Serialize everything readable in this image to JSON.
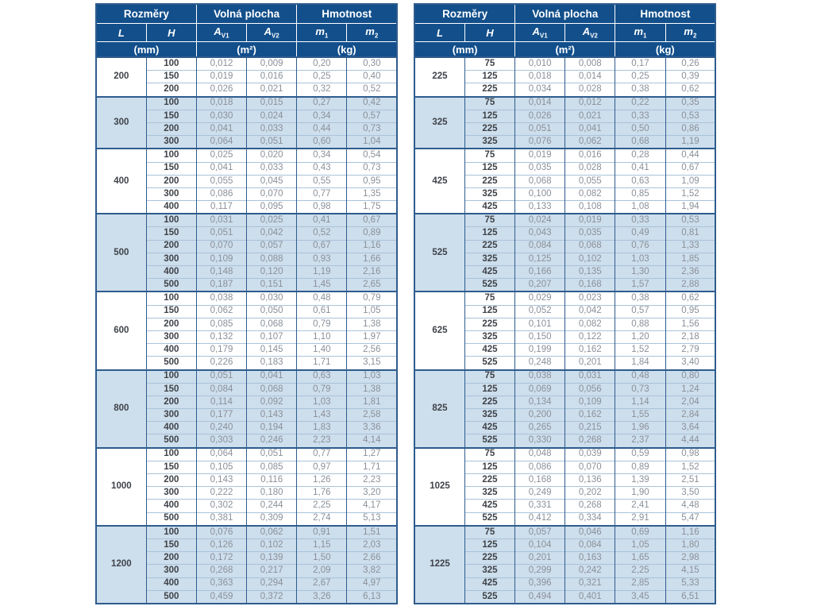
{
  "colors": {
    "header_bg": "#124f8b",
    "header_text": "#ffffff",
    "shaded_row_bg": "#cddeec",
    "grid_dark": "#2e5c8e",
    "grid_light": "#a9c3da",
    "dimension_text": "#3f4349",
    "value_text": "#8a9099"
  },
  "header": {
    "groups": [
      "Rozměry",
      "Volná plocha",
      "Hmotnost"
    ],
    "columns": [
      {
        "base": "L",
        "sub": ""
      },
      {
        "base": "H",
        "sub": ""
      },
      {
        "base": "A",
        "sub": "V1"
      },
      {
        "base": "A",
        "sub": "V2"
      },
      {
        "base": "m",
        "sub": "1"
      },
      {
        "base": "m",
        "sub": "2"
      }
    ],
    "units": [
      "(mm)",
      "(m²)",
      "(kg)"
    ]
  },
  "tables": [
    {
      "id": "left",
      "groups": [
        {
          "L": "200",
          "shaded": false,
          "rows": [
            [
              "100",
              "0,012",
              "0,009",
              "0,20",
              "0,30"
            ],
            [
              "150",
              "0,019",
              "0,016",
              "0,25",
              "0,40"
            ],
            [
              "200",
              "0,026",
              "0,021",
              "0,32",
              "0,52"
            ]
          ]
        },
        {
          "L": "300",
          "shaded": true,
          "rows": [
            [
              "100",
              "0,018",
              "0,015",
              "0,27",
              "0,42"
            ],
            [
              "150",
              "0,030",
              "0,024",
              "0,34",
              "0,57"
            ],
            [
              "200",
              "0,041",
              "0,033",
              "0,44",
              "0,73"
            ],
            [
              "300",
              "0,064",
              "0,051",
              "0,60",
              "1,04"
            ]
          ]
        },
        {
          "L": "400",
          "shaded": false,
          "rows": [
            [
              "100",
              "0,025",
              "0,020",
              "0,34",
              "0,54"
            ],
            [
              "150",
              "0,041",
              "0,033",
              "0,43",
              "0,73"
            ],
            [
              "200",
              "0,055",
              "0,045",
              "0,55",
              "0,95"
            ],
            [
              "300",
              "0,086",
              "0,070",
              "0,77",
              "1,35"
            ],
            [
              "400",
              "0,117",
              "0,095",
              "0,98",
              "1,75"
            ]
          ]
        },
        {
          "L": "500",
          "shaded": true,
          "rows": [
            [
              "100",
              "0,031",
              "0,025",
              "0,41",
              "0,67"
            ],
            [
              "150",
              "0,051",
              "0,042",
              "0,52",
              "0,89"
            ],
            [
              "200",
              "0,070",
              "0,057",
              "0,67",
              "1,16"
            ],
            [
              "300",
              "0,109",
              "0,088",
              "0,93",
              "1,66"
            ],
            [
              "400",
              "0,148",
              "0,120",
              "1,19",
              "2,16"
            ],
            [
              "500",
              "0,187",
              "0,151",
              "1,45",
              "2,65"
            ]
          ]
        },
        {
          "L": "600",
          "shaded": false,
          "rows": [
            [
              "100",
              "0,038",
              "0,030",
              "0,48",
              "0,79"
            ],
            [
              "150",
              "0,062",
              "0,050",
              "0,61",
              "1,05"
            ],
            [
              "200",
              "0,085",
              "0,068",
              "0,79",
              "1,38"
            ],
            [
              "300",
              "0,132",
              "0,107",
              "1,10",
              "1,97"
            ],
            [
              "400",
              "0,179",
              "0,145",
              "1,40",
              "2,56"
            ],
            [
              "500",
              "0,226",
              "0,183",
              "1,71",
              "3,15"
            ]
          ]
        },
        {
          "L": "800",
          "shaded": true,
          "rows": [
            [
              "100",
              "0,051",
              "0,041",
              "0,63",
              "1,03"
            ],
            [
              "150",
              "0,084",
              "0,068",
              "0,79",
              "1,38"
            ],
            [
              "200",
              "0,114",
              "0,092",
              "1,03",
              "1,81"
            ],
            [
              "300",
              "0,177",
              "0,143",
              "1,43",
              "2,58"
            ],
            [
              "400",
              "0,240",
              "0,194",
              "1,83",
              "3,36"
            ],
            [
              "500",
              "0,303",
              "0,246",
              "2,23",
              "4,14"
            ]
          ]
        },
        {
          "L": "1000",
          "shaded": false,
          "rows": [
            [
              "100",
              "0,064",
              "0,051",
              "0,77",
              "1,27"
            ],
            [
              "150",
              "0,105",
              "0,085",
              "0,97",
              "1,71"
            ],
            [
              "200",
              "0,143",
              "0,116",
              "1,26",
              "2,23"
            ],
            [
              "300",
              "0,222",
              "0,180",
              "1,76",
              "3,20"
            ],
            [
              "400",
              "0,302",
              "0,244",
              "2,25",
              "4,17"
            ],
            [
              "500",
              "0,381",
              "0,309",
              "2,74",
              "5,13"
            ]
          ]
        },
        {
          "L": "1200",
          "shaded": true,
          "rows": [
            [
              "100",
              "0,076",
              "0,062",
              "0,91",
              "1,51"
            ],
            [
              "150",
              "0,126",
              "0,102",
              "1,15",
              "2,03"
            ],
            [
              "200",
              "0,172",
              "0,139",
              "1,50",
              "2,66"
            ],
            [
              "300",
              "0,268",
              "0,217",
              "2,09",
              "3,82"
            ],
            [
              "400",
              "0,363",
              "0,294",
              "2,67",
              "4,97"
            ],
            [
              "500",
              "0,459",
              "0,372",
              "3,26",
              "6,13"
            ]
          ]
        }
      ]
    },
    {
      "id": "right",
      "groups": [
        {
          "L": "225",
          "shaded": false,
          "rows": [
            [
              "75",
              "0,010",
              "0,008",
              "0,17",
              "0,26"
            ],
            [
              "125",
              "0,018",
              "0,014",
              "0,25",
              "0,39"
            ],
            [
              "225",
              "0,034",
              "0,028",
              "0,38",
              "0,62"
            ]
          ]
        },
        {
          "L": "325",
          "shaded": true,
          "rows": [
            [
              "75",
              "0,014",
              "0,012",
              "0,22",
              "0,35"
            ],
            [
              "125",
              "0,026",
              "0,021",
              "0,33",
              "0,53"
            ],
            [
              "225",
              "0,051",
              "0,041",
              "0,50",
              "0,86"
            ],
            [
              "325",
              "0,076",
              "0,062",
              "0,68",
              "1,19"
            ]
          ]
        },
        {
          "L": "425",
          "shaded": false,
          "rows": [
            [
              "75",
              "0,019",
              "0,016",
              "0,28",
              "0,44"
            ],
            [
              "125",
              "0,035",
              "0,028",
              "0,41",
              "0,67"
            ],
            [
              "225",
              "0,068",
              "0,055",
              "0,63",
              "1,09"
            ],
            [
              "325",
              "0,100",
              "0,082",
              "0,85",
              "1,52"
            ],
            [
              "425",
              "0,133",
              "0,108",
              "1,08",
              "1,94"
            ]
          ]
        },
        {
          "L": "525",
          "shaded": true,
          "rows": [
            [
              "75",
              "0,024",
              "0,019",
              "0,33",
              "0,53"
            ],
            [
              "125",
              "0,043",
              "0,035",
              "0,49",
              "0,81"
            ],
            [
              "225",
              "0,084",
              "0,068",
              "0,76",
              "1,33"
            ],
            [
              "325",
              "0,125",
              "0,102",
              "1,03",
              "1,85"
            ],
            [
              "425",
              "0,166",
              "0,135",
              "1,30",
              "2,36"
            ],
            [
              "525",
              "0,207",
              "0,168",
              "1,57",
              "2,88"
            ]
          ]
        },
        {
          "L": "625",
          "shaded": false,
          "rows": [
            [
              "75",
              "0,029",
              "0,023",
              "0,38",
              "0,62"
            ],
            [
              "125",
              "0,052",
              "0,042",
              "0,57",
              "0,95"
            ],
            [
              "225",
              "0,101",
              "0,082",
              "0,88",
              "1,56"
            ],
            [
              "325",
              "0,150",
              "0,122",
              "1,20",
              "2,18"
            ],
            [
              "425",
              "0,199",
              "0,162",
              "1,52",
              "2,79"
            ],
            [
              "525",
              "0,248",
              "0,201",
              "1,84",
              "3,40"
            ]
          ]
        },
        {
          "L": "825",
          "shaded": true,
          "rows": [
            [
              "75",
              "0,038",
              "0,031",
              "0,48",
              "0,80"
            ],
            [
              "125",
              "0,069",
              "0,056",
              "0,73",
              "1,24"
            ],
            [
              "225",
              "0,134",
              "0,109",
              "1,14",
              "2,04"
            ],
            [
              "325",
              "0,200",
              "0,162",
              "1,55",
              "2,84"
            ],
            [
              "425",
              "0,265",
              "0,215",
              "1,96",
              "3,64"
            ],
            [
              "525",
              "0,330",
              "0,268",
              "2,37",
              "4,44"
            ]
          ]
        },
        {
          "L": "1025",
          "shaded": false,
          "rows": [
            [
              "75",
              "0,048",
              "0,039",
              "0,59",
              "0,98"
            ],
            [
              "125",
              "0,086",
              "0,070",
              "0,89",
              "1,52"
            ],
            [
              "225",
              "0,168",
              "0,136",
              "1,39",
              "2,51"
            ],
            [
              "325",
              "0,249",
              "0,202",
              "1,90",
              "3,50"
            ],
            [
              "425",
              "0,331",
              "0,268",
              "2,41",
              "4,48"
            ],
            [
              "525",
              "0,412",
              "0,334",
              "2,91",
              "5,47"
            ]
          ]
        },
        {
          "L": "1225",
          "shaded": true,
          "rows": [
            [
              "75",
              "0,057",
              "0,046",
              "0,69",
              "1,16"
            ],
            [
              "125",
              "0,104",
              "0,084",
              "1,05",
              "1,80"
            ],
            [
              "225",
              "0,201",
              "0,163",
              "1,65",
              "2,98"
            ],
            [
              "325",
              "0,299",
              "0,242",
              "2,25",
              "4,15"
            ],
            [
              "425",
              "0,396",
              "0,321",
              "2,85",
              "5,33"
            ],
            [
              "525",
              "0,494",
              "0,401",
              "3,45",
              "6,51"
            ]
          ]
        }
      ]
    }
  ]
}
